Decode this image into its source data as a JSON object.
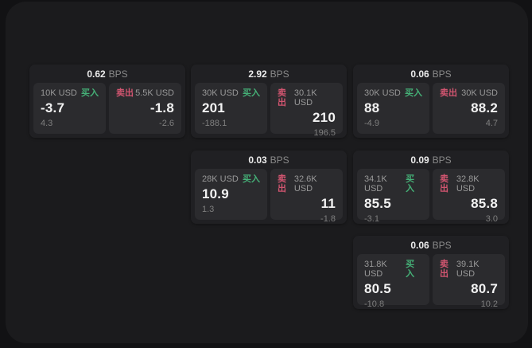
{
  "labels": {
    "bps_suffix": "BPS",
    "buy": "买入",
    "sell": "卖出"
  },
  "colors": {
    "buy_green": "#45b077",
    "sell_red": "#d25570",
    "panel_bg": "#1b1b1d",
    "card_bg": "#202023",
    "tile_bg": "#2b2b2e"
  },
  "cards": [
    {
      "bps": "0.62",
      "buy": {
        "amount": "10K USD",
        "value": "-3.7",
        "secondary": "4.3"
      },
      "sell": {
        "amount": "5.5K USD",
        "value": "-1.8",
        "secondary": "-2.6"
      }
    },
    {
      "bps": "2.92",
      "buy": {
        "amount": "30K USD",
        "value": "201",
        "secondary": "-188.1"
      },
      "sell": {
        "amount": "30.1K USD",
        "value": "210",
        "secondary": "196.5"
      }
    },
    {
      "bps": "0.06",
      "buy": {
        "amount": "30K USD",
        "value": "88",
        "secondary": "-4.9"
      },
      "sell": {
        "amount": "30K USD",
        "value": "88.2",
        "secondary": "4.7"
      }
    },
    {
      "bps": "0.03",
      "buy": {
        "amount": "28K USD",
        "value": "10.9",
        "secondary": "1.3"
      },
      "sell": {
        "amount": "32.6K USD",
        "value": "11",
        "secondary": "-1.8"
      }
    },
    {
      "bps": "0.09",
      "buy": {
        "amount": "34.1K USD",
        "value": "85.5",
        "secondary": "-3.1"
      },
      "sell": {
        "amount": "32.8K USD",
        "value": "85.8",
        "secondary": "3.0"
      }
    },
    {
      "bps": "0.06",
      "buy": {
        "amount": "31.8K USD",
        "value": "80.5",
        "secondary": "-10.8"
      },
      "sell": {
        "amount": "39.1K USD",
        "value": "80.7",
        "secondary": "10.2"
      }
    }
  ]
}
